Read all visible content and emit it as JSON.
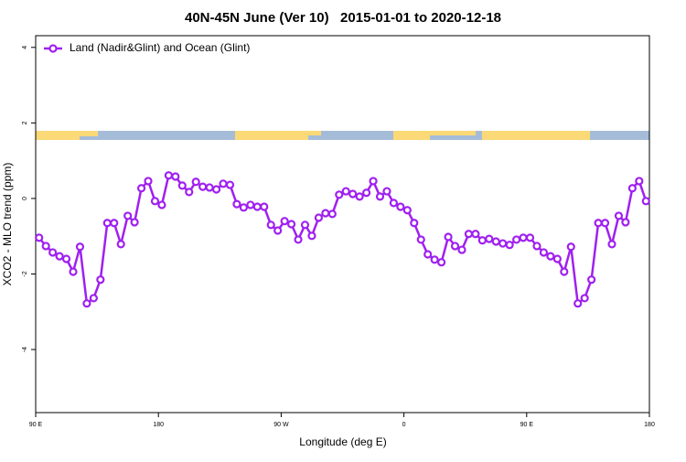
{
  "chart_data": {
    "type": "line",
    "title": "40N-45N June (Ver 10)   2015-01-01 to 2020-12-18",
    "xlabel": "Longitude (deg E)",
    "ylabel": "XCO2 - MLO trend (ppm)",
    "xlim": [
      90,
      540
    ],
    "ylim": [
      -5.67,
      4.31
    ],
    "xticks": [
      {
        "value": 90,
        "label": "90 E"
      },
      180,
      {
        "value": 270,
        "label": "90 W"
      },
      {
        "value": 360,
        "label": "0"
      },
      {
        "value": 450,
        "label": "90 E"
      },
      {
        "value": 540,
        "label": "180"
      }
    ],
    "yticks": [
      -4,
      -2,
      0,
      2,
      4
    ],
    "legend": "top-left",
    "x": [
      92.5,
      97.5,
      102.5,
      107.5,
      112.5,
      117.5,
      122.5,
      127.5,
      132.5,
      137.5,
      142.5,
      147.5,
      152.5,
      157.5,
      162.5,
      167.5,
      172.5,
      177.5,
      182.5,
      187.5,
      192.5,
      197.5,
      202.5,
      207.5,
      212.5,
      217.5,
      222.5,
      227.5,
      232.5,
      237.5,
      242.5,
      247.5,
      252.5,
      257.5,
      262.5,
      267.5,
      272.5,
      277.5,
      282.5,
      287.5,
      292.5,
      297.5,
      302.5,
      307.5,
      312.5,
      317.5,
      322.5,
      327.5,
      332.5,
      337.5,
      342.5,
      347.5,
      352.5,
      357.5,
      362.5,
      367.5,
      372.5,
      377.5,
      382.5,
      387.5,
      392.5,
      397.5,
      402.5,
      407.5,
      412.5,
      417.5,
      422.5,
      427.5,
      432.5,
      437.5,
      442.5,
      447.5,
      452.5,
      457.5,
      462.5,
      467.5,
      472.5,
      477.5,
      482.5,
      487.5,
      492.5,
      497.5,
      502.5,
      507.5,
      512.5,
      517.5,
      522.5,
      527.5,
      532.5,
      537.5
    ],
    "series": [
      {
        "name": "Land (Nadir&Glint) and Ocean (Glint)",
        "color": "#a020f0",
        "values": [
          -1.04,
          -1.26,
          -1.43,
          -1.53,
          -1.6,
          -1.94,
          -1.28,
          -2.78,
          -2.64,
          -2.15,
          -0.65,
          -0.65,
          -1.21,
          -0.46,
          -0.63,
          0.27,
          0.46,
          -0.07,
          -0.17,
          0.61,
          0.58,
          0.34,
          0.17,
          0.44,
          0.31,
          0.29,
          0.24,
          0.39,
          0.36,
          -0.15,
          -0.24,
          -0.17,
          -0.22,
          -0.22,
          -0.7,
          -0.85,
          -0.6,
          -0.68,
          -1.09,
          -0.7,
          -0.99,
          -0.51,
          -0.39,
          -0.41,
          0.1,
          0.19,
          0.12,
          0.05,
          0.15,
          0.46,
          0.05,
          0.19,
          -0.12,
          -0.22,
          -0.31,
          -0.65,
          -1.09,
          -1.48,
          -1.62,
          -1.69,
          -1.02,
          -1.26,
          -1.36,
          -0.94,
          -0.94,
          -1.11,
          -1.07,
          -1.14,
          -1.19,
          -1.23,
          -1.09,
          -1.04,
          -1.04,
          -1.26,
          -1.43,
          -1.53,
          -1.6,
          -1.94,
          -1.28,
          -2.78,
          -2.64,
          -2.15,
          -0.65,
          -0.65,
          -1.21,
          -0.46,
          -0.63,
          0.27,
          0.46,
          -0.07
        ]
      }
    ]
  }
}
